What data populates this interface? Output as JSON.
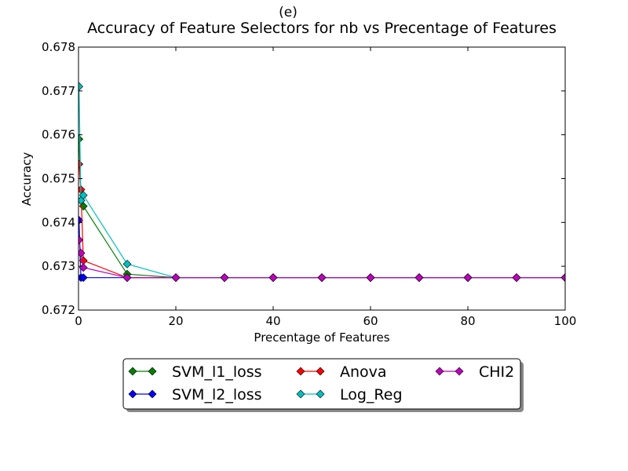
{
  "chart_data": {
    "type": "line",
    "supertitle": "(e)",
    "title": "Accuracy of Feature Selectors for nb vs Precentage of Features",
    "xlabel": "Precentage of Features",
    "ylabel": "Accuracy",
    "xlim": [
      0,
      100
    ],
    "ylim": [
      0.672,
      0.678
    ],
    "xticks": [
      0,
      20,
      40,
      60,
      80,
      100
    ],
    "yticks": [
      0.672,
      0.673,
      0.674,
      0.675,
      0.676,
      0.677,
      0.678
    ],
    "ytick_labels": [
      "0.672",
      "0.673",
      "0.674",
      "0.675",
      "0.676",
      "0.677",
      "0.678"
    ],
    "grid": false,
    "legend_position": "bottom-center",
    "series": [
      {
        "name": "SVM_l1_loss",
        "color": "#008000",
        "x": [
          0.1,
          0.5,
          1,
          10,
          20,
          30,
          40,
          50,
          60,
          70,
          80,
          90,
          100
        ],
        "y": [
          0.6759,
          0.6745,
          0.67437,
          0.67282,
          0.67274,
          0.67274,
          0.67274,
          0.67274,
          0.67274,
          0.67274,
          0.67274,
          0.67274,
          0.67274
        ]
      },
      {
        "name": "SVM_l2_loss",
        "color": "#0000ff",
        "x": [
          0.1,
          0.5,
          1,
          10,
          20,
          30,
          40,
          50,
          60,
          70,
          80,
          90,
          100
        ],
        "y": [
          0.67405,
          0.67274,
          0.67274,
          0.67274,
          0.67274,
          0.67274,
          0.67274,
          0.67274,
          0.67274,
          0.67274,
          0.67274,
          0.67274,
          0.67274
        ]
      },
      {
        "name": "Anova",
        "color": "#ff0000",
        "x": [
          0.1,
          0.5,
          1,
          10,
          20,
          30,
          40,
          50,
          60,
          70,
          80,
          90,
          100
        ],
        "y": [
          0.67533,
          0.67475,
          0.67313,
          0.67274,
          0.67274,
          0.67274,
          0.67274,
          0.67274,
          0.67274,
          0.67274,
          0.67274,
          0.67274,
          0.67274
        ]
      },
      {
        "name": "Log_Reg",
        "color": "#00bfbf",
        "x": [
          0.1,
          0.5,
          1,
          10,
          20,
          30,
          40,
          50,
          60,
          70,
          80,
          90,
          100
        ],
        "y": [
          0.6771,
          0.6745,
          0.67462,
          0.67305,
          0.67274,
          0.67274,
          0.67274,
          0.67274,
          0.67274,
          0.67274,
          0.67274,
          0.67274,
          0.67274
        ]
      },
      {
        "name": "CHI2",
        "color": "#bf00bf",
        "x": [
          0.1,
          0.5,
          1,
          10,
          20,
          30,
          40,
          50,
          60,
          70,
          80,
          90,
          100
        ],
        "y": [
          0.6736,
          0.6733,
          0.67297,
          0.67274,
          0.67274,
          0.67274,
          0.67274,
          0.67274,
          0.67274,
          0.67274,
          0.67274,
          0.67274,
          0.67274
        ]
      }
    ]
  }
}
